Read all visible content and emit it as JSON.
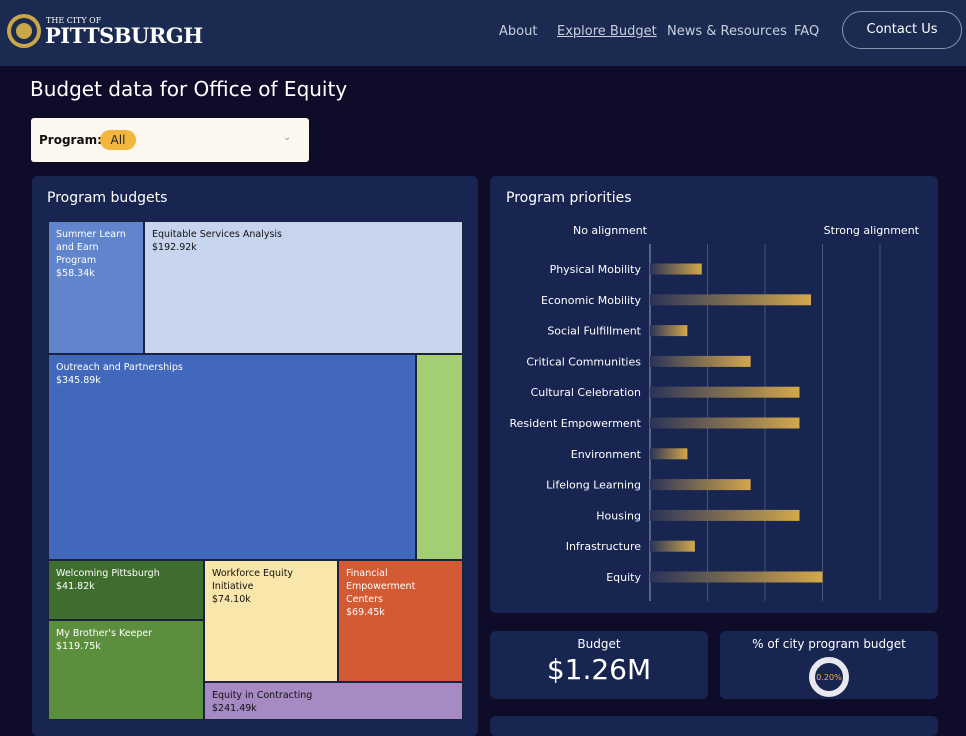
{
  "header": {
    "logo_small": "THE CITY OF",
    "logo_name": "PITTSBURGH",
    "nav": [
      "About",
      "Explore Budget",
      "News & Resources",
      "FAQ"
    ],
    "button": "Contact Us"
  },
  "page_title": "Budget data for Office of Equity",
  "filter": {
    "label": "Program:",
    "value": "All"
  },
  "chart_data": [
    {
      "type": "treemap",
      "title": "Program budgets",
      "categories": [
        "Summer Learn and Earn Program",
        "Equitable Services Analysis",
        "Outreach and Partnerships",
        null,
        "Welcoming Pittsburgh",
        "Workforce Equity Initiative",
        "Financial Empowerment Centers",
        "My Brother's Keeper",
        "Equity in Contracting"
      ],
      "values": [
        58.34,
        192.92,
        345.89,
        44.3,
        41.82,
        74.1,
        69.45,
        119.75,
        241.49
      ],
      "value_labels": [
        "$58.34k",
        "$192.92k",
        "$345.89k",
        null,
        "$41.82k",
        "$74.10k",
        "$69.45k",
        "$119.75k",
        "$241.49k"
      ],
      "colors": [
        "#6185cc",
        "#c7d4ed",
        "#4168ba",
        "#a3cf72",
        "#3f6d2e",
        "#f9e6aa",
        "#d35a33",
        "#5c8f3d",
        "#a58ac3"
      ]
    },
    {
      "type": "bar",
      "orientation": "horizontal",
      "title": "Program priorities",
      "xlabel_left": "No alignment",
      "xlabel_right": "Strong alignment",
      "categories": [
        "Physical Mobility",
        "Economic Mobility",
        "Social Fulfillment",
        "Critical Communities",
        "Cultural Celebration",
        "Resident Empowerment",
        "Environment",
        "Lifelong Learning",
        "Housing",
        "Infrastructure",
        "Equity"
      ],
      "values": [
        0.9,
        2.8,
        0.65,
        1.75,
        2.6,
        2.6,
        0.65,
        1.75,
        2.6,
        0.78,
        3.0
      ],
      "color": "#d4a84b",
      "xlim": [
        0,
        4
      ],
      "xticks": [
        0,
        1,
        2,
        3,
        4
      ],
      "grid": true
    }
  ],
  "kpis": [
    {
      "label": "Budget",
      "value": "$1.26M"
    },
    {
      "label": "% of city program budget",
      "value": 0.2,
      "value_label": "0.20%",
      "max": 100
    }
  ]
}
